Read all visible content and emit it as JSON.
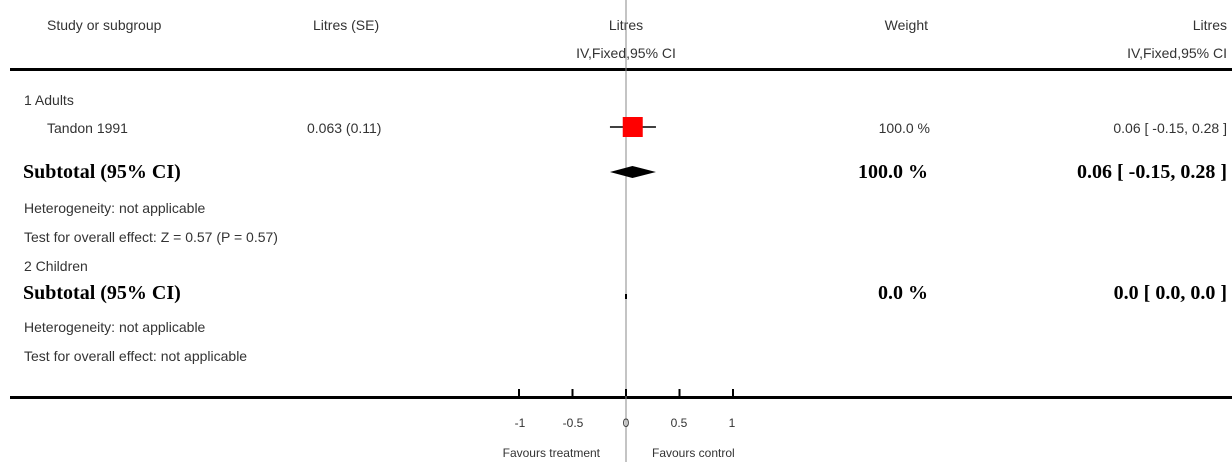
{
  "header": {
    "col_study": "Study or subgroup",
    "col_litres_se": "Litres (SE)",
    "col_litres_plot": "Litres",
    "col_litres_plot_sub": "IV,Fixed,95% CI",
    "col_weight": "Weight",
    "col_litres_ci": "Litres",
    "col_litres_ci_sub": "IV,Fixed,95% CI"
  },
  "groups": [
    {
      "label": "1 Adults",
      "studies": [
        {
          "name": "Tandon 1991",
          "litres_se": "0.063 (0.11)",
          "weight": "100.0 %",
          "ci_text": "0.06 [ -0.15, 0.28 ]"
        }
      ],
      "subtotal": {
        "label": "Subtotal (95% CI)",
        "weight": "100.0 %",
        "ci_text": "0.06 [ -0.15, 0.28 ]"
      },
      "heterogeneity": "Heterogeneity: not applicable",
      "overall_effect": "Test for overall effect: Z = 0.57 (P = 0.57)"
    },
    {
      "label": "2 Children",
      "subtotal": {
        "label": "Subtotal (95% CI)",
        "weight": "0.0 %",
        "ci_text": "0.0 [ 0.0, 0.0 ]"
      },
      "heterogeneity": "Heterogeneity: not applicable",
      "overall_effect": "Test for overall effect: not applicable"
    }
  ],
  "axis": {
    "tick_labels": [
      "-1",
      "-0.5",
      "0",
      "0.5",
      "1"
    ],
    "favours_left": "Favours treatment",
    "favours_right": "Favours control"
  },
  "colors": {
    "study_marker": "#ff0000",
    "diamond": "#000000",
    "line": "#000000"
  },
  "chart_data": {
    "type": "forest",
    "xlim": [
      -1,
      1
    ],
    "ticks": [
      -1,
      -0.5,
      0,
      0.5,
      1
    ],
    "studies": [
      {
        "name": "Tandon 1991",
        "estimate": 0.063,
        "se": 0.11,
        "ci": [
          -0.15,
          0.28
        ],
        "weight": 100.0
      }
    ],
    "subtotals": [
      {
        "group": "1 Adults",
        "estimate": 0.06,
        "ci": [
          -0.15,
          0.28
        ],
        "weight": 100.0
      },
      {
        "group": "2 Children",
        "estimate": 0.0,
        "ci": [
          0.0,
          0.0
        ],
        "weight": 0.0
      }
    ]
  }
}
